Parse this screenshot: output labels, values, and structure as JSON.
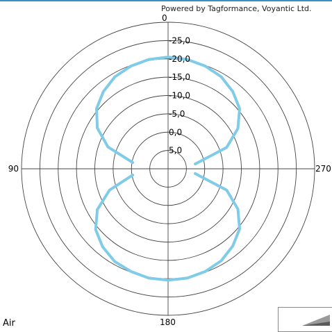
{
  "credit": "Powered by Tagformance, Voyantic Ltd.",
  "legend": {
    "label": "Air"
  },
  "chart_data": {
    "type": "polar",
    "angle_labels": [
      "0",
      "90",
      "180",
      "270"
    ],
    "radial_tick_labels": [
      "5,0",
      "0,0",
      "-5,0",
      "-10,0",
      "-15,0",
      "-20,0",
      "-25,0"
    ],
    "radial_ticks": [
      5,
      0,
      -5,
      -10,
      -15,
      -20,
      -25
    ],
    "radial_range": [
      10,
      -30
    ],
    "ring_count": 8,
    "line_color": "#7fcbe8",
    "series": [
      {
        "name": "Air",
        "angles_deg": [
          0,
          10,
          20,
          30,
          40,
          50,
          60,
          70,
          80,
          100,
          110,
          120,
          130,
          140,
          150,
          160,
          170,
          180,
          190,
          200,
          210,
          220,
          230,
          240,
          250,
          260,
          280,
          290,
          300,
          310,
          320,
          330,
          340,
          350,
          360
        ],
        "values": [
          -20.5,
          -20.3,
          -19.8,
          -19.0,
          -17.5,
          -15.5,
          -12.3,
          -7.5,
          0.2,
          0.2,
          -7.0,
          -12.3,
          -15.8,
          -17.8,
          -19.2,
          -19.8,
          -20.3,
          -20.4,
          -20.3,
          -19.8,
          -19.0,
          -17.5,
          -15.5,
          -12.0,
          -7.0,
          2.5,
          2.5,
          -7.0,
          -12.0,
          -15.5,
          -17.5,
          -19.0,
          -19.8,
          -20.3,
          -20.5
        ]
      }
    ]
  }
}
